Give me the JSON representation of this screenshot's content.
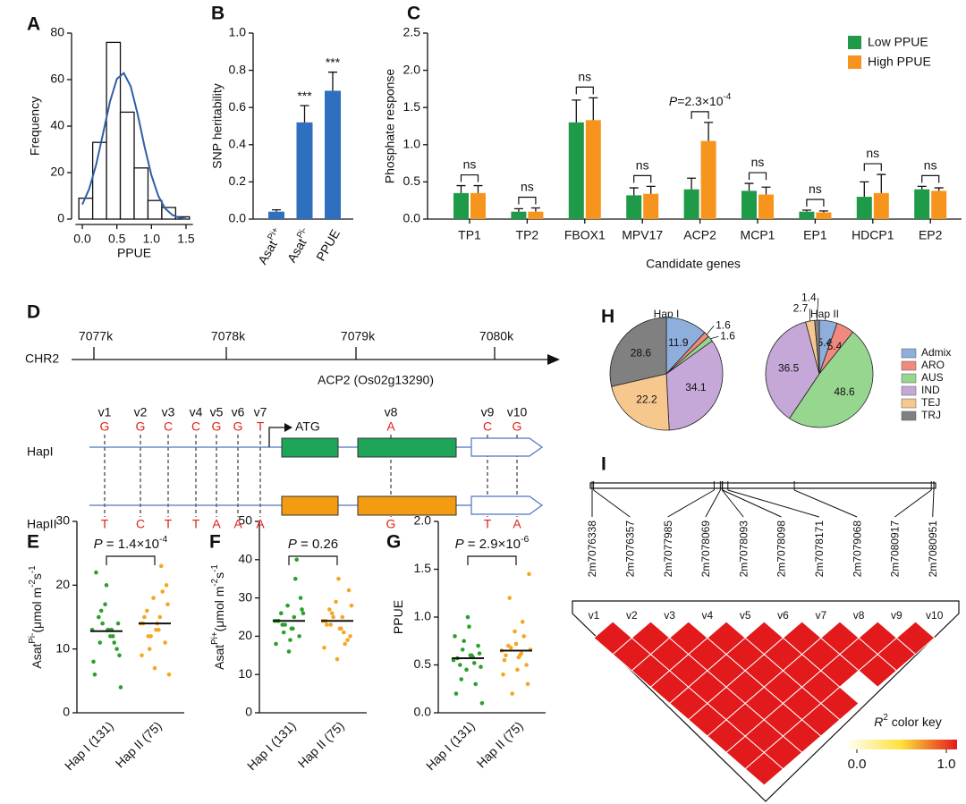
{
  "panel_labels": [
    "A",
    "B",
    "C",
    "D",
    "E",
    "F",
    "G",
    "H",
    "I"
  ],
  "chart_data": [
    {
      "type": "histogram",
      "x_label": "PPUE",
      "y_label": "Frequency",
      "bins": [
        -0.05,
        0.15,
        0.35,
        0.55,
        0.75,
        0.95,
        1.15,
        1.35,
        1.55
      ],
      "values": [
        9,
        33,
        76,
        46,
        22,
        8,
        5,
        1
      ],
      "color": "#ffffff",
      "edge_color": "#111111",
      "fit": {
        "color": "#2f5ea8",
        "x": [
          0,
          0.1,
          0.2,
          0.3,
          0.4,
          0.5,
          0.6,
          0.7,
          0.8,
          0.9,
          1.0,
          1.1,
          1.2,
          1.3,
          1.4,
          1.5
        ],
        "y": [
          6.3,
          13.0,
          23.4,
          36.8,
          50.5,
          60.3,
          62.8,
          57.1,
          45.2,
          31.2,
          18.8,
          9.9,
          4.5,
          1.8,
          0.6,
          0.2
        ]
      },
      "xlim": [
        -0.1,
        1.6
      ],
      "xticks": [
        {
          "value": 0,
          "label": "0.0"
        },
        {
          "value": 0.5,
          "label": "0.5"
        },
        {
          "value": 1,
          "label": "1.0"
        },
        {
          "value": 1.5,
          "label": "1.5"
        }
      ],
      "ylim": [
        0,
        80
      ],
      "yticks": [
        0,
        20,
        40,
        60,
        80
      ]
    },
    {
      "type": "bar",
      "y_label": "SNP heritability",
      "categories": [
        {
          "base": "Asat",
          "sup": "Pi+"
        },
        {
          "base": "Asat",
          "sup": "Pi-"
        },
        {
          "base": "PPUE"
        }
      ],
      "values": [
        0.04,
        0.52,
        0.69
      ],
      "errors": [
        0.01,
        0.09,
        0.1
      ],
      "annotations": [
        null,
        "***",
        "***"
      ],
      "color": "#2f6fbf",
      "ylim": [
        0,
        1
      ],
      "yticks": [
        {
          "value": 0,
          "label": "0.0"
        },
        {
          "value": 0.2,
          "label": "0.2"
        },
        {
          "value": 0.4,
          "label": "0.4"
        },
        {
          "value": 0.6,
          "label": "0.6"
        },
        {
          "value": 0.8,
          "label": "0.8"
        },
        {
          "value": 1,
          "label": "1.0"
        }
      ]
    },
    {
      "type": "bar",
      "y_label": "Phosphate response",
      "x_label": "Candidate genes",
      "categories": [
        "TP1",
        "TP2",
        "FBOX1",
        "MPV17",
        "ACP2",
        "MCP1",
        "EP1",
        "HDCP1",
        "EP2"
      ],
      "series": [
        {
          "name": "Low PPUE",
          "color": "#1f9a48",
          "values": [
            0.35,
            0.1,
            1.3,
            0.32,
            0.4,
            0.38,
            0.1,
            0.3,
            0.4
          ],
          "errors": [
            0.1,
            0.04,
            0.3,
            0.1,
            0.15,
            0.1,
            0.02,
            0.2,
            0.04
          ]
        },
        {
          "name": "High PPUE",
          "color": "#f7941d",
          "values": [
            0.35,
            0.1,
            1.33,
            0.34,
            1.05,
            0.33,
            0.09,
            0.35,
            0.38
          ],
          "errors": [
            0.1,
            0.05,
            0.3,
            0.1,
            0.25,
            0.1,
            0.02,
            0.25,
            0.04
          ]
        }
      ],
      "annotations": [
        [
          {
            "text": "ns"
          }
        ],
        [
          {
            "text": "ns"
          }
        ],
        [
          {
            "text": "ns"
          }
        ],
        [
          {
            "text": "ns"
          }
        ],
        [
          {
            "text": "P",
            "italic": true
          },
          {
            "text": "=2.3×10"
          },
          {
            "text": "-4",
            "sup": true
          }
        ],
        [
          {
            "text": "ns"
          }
        ],
        [
          {
            "text": "ns"
          }
        ],
        [
          {
            "text": "ns"
          }
        ],
        [
          {
            "text": "ns"
          }
        ]
      ],
      "legend": "top-right",
      "ylim": [
        0,
        2.5
      ],
      "yticks": [
        {
          "value": 0,
          "label": "0.0"
        },
        {
          "value": 0.5,
          "label": "0.5"
        },
        {
          "value": 1,
          "label": "1.0"
        },
        {
          "value": 1.5,
          "label": "1.5"
        },
        {
          "value": 2,
          "label": "2.0"
        },
        {
          "value": 2.5,
          "label": "2.5"
        }
      ]
    },
    {
      "type": "strip",
      "y_label_parts": [
        {
          "text": "Asat"
        },
        {
          "text": "Pi-",
          "sup": true
        },
        {
          "text": "(μmol m"
        },
        {
          "text": "-2",
          "sup": true
        },
        {
          "text": "s"
        },
        {
          "text": "-1",
          "sup": true
        }
      ],
      "categories": [
        "Hap I (131)",
        "Hap II (75)"
      ],
      "groups": [
        {
          "color": "#2ca02c",
          "median": 12.8,
          "values": [
            13,
            12,
            15,
            10,
            17,
            8,
            13,
            11,
            14,
            20,
            6,
            12,
            16,
            9,
            13,
            22,
            11,
            14,
            4,
            13
          ]
        },
        {
          "color": "#f5a623",
          "median": 14,
          "values": [
            14,
            13,
            16,
            11,
            18,
            9,
            15,
            12,
            20,
            7,
            14,
            23,
            10,
            17,
            13,
            15,
            19,
            12,
            6,
            14
          ]
        }
      ],
      "annotation": [
        {
          "text": "P",
          "italic": true
        },
        {
          "text": " = 1.4×10"
        },
        {
          "text": "-4",
          "sup": true
        }
      ],
      "ylim": [
        0,
        30
      ],
      "yticks": [
        0,
        10,
        20,
        30
      ]
    },
    {
      "type": "strip",
      "y_label_parts": [
        {
          "text": "Asat"
        },
        {
          "text": "Pi+",
          "sup": true
        },
        {
          "text": "(μmol m"
        },
        {
          "text": "-2",
          "sup": true
        },
        {
          "text": "s"
        },
        {
          "text": "-1",
          "sup": true
        }
      ],
      "categories": [
        "Hap I (131)",
        "Hap II (75)"
      ],
      "groups": [
        {
          "color": "#2ca02c",
          "median": 24,
          "values": [
            24,
            22,
            26,
            20,
            28,
            18,
            25,
            23,
            30,
            16,
            24,
            35,
            21,
            27,
            19,
            24,
            40,
            23,
            26,
            22
          ]
        },
        {
          "color": "#f5a623",
          "median": 24,
          "values": [
            24,
            22,
            27,
            19,
            29,
            17,
            25,
            23,
            32,
            14,
            24,
            21,
            26,
            20,
            35,
            23,
            18,
            25,
            28,
            22
          ]
        }
      ],
      "annotation": [
        {
          "text": "P",
          "italic": true
        },
        {
          "text": " = 0.26"
        }
      ],
      "ylim": [
        0,
        50
      ],
      "yticks": [
        0,
        10,
        20,
        30,
        40,
        50
      ]
    },
    {
      "type": "strip",
      "y_label_parts": [
        {
          "text": "PPUE"
        }
      ],
      "categories": [
        "Hap I (131)",
        "Hap II (75)"
      ],
      "groups": [
        {
          "color": "#2ca02c",
          "median": 0.57,
          "values": [
            0.55,
            0.6,
            0.5,
            0.7,
            0.45,
            0.8,
            0.58,
            0.35,
            0.62,
            1.0,
            0.2,
            0.52,
            0.66,
            0.48,
            0.9,
            0.57,
            0.3,
            0.75,
            0.1,
            0.6
          ]
        },
        {
          "color": "#f5a623",
          "median": 0.65,
          "values": [
            0.65,
            0.6,
            0.7,
            0.5,
            0.85,
            0.4,
            0.62,
            1.2,
            0.3,
            0.72,
            0.55,
            0.95,
            0.68,
            1.45,
            0.45,
            0.6,
            0.8,
            0.2,
            0.66,
            0.58
          ]
        }
      ],
      "annotation": [
        {
          "text": "P",
          "italic": true
        },
        {
          "text": " = 2.9×10"
        },
        {
          "text": "-6",
          "sup": true
        }
      ],
      "ylim": [
        0,
        2
      ],
      "yticks": [
        {
          "value": 0,
          "label": "0.0"
        },
        {
          "value": 0.5,
          "label": "0.5"
        },
        {
          "value": 1,
          "label": "1.0"
        },
        {
          "value": 1.5,
          "label": "1.5"
        },
        {
          "value": 2,
          "label": "2.0"
        }
      ]
    },
    {
      "type": "pie",
      "title": "Hap I",
      "categories": [
        "Admix",
        "ARO",
        "AUS",
        "IND",
        "TEJ",
        "TRJ"
      ],
      "values": [
        11.9,
        1.6,
        1.6,
        34.1,
        22.2,
        28.6
      ],
      "colors": [
        "#8eaedb",
        "#f08a7e",
        "#97d68f",
        "#c6a8d8",
        "#f7c88e",
        "#808080"
      ]
    },
    {
      "type": "pie",
      "title": "Hap II",
      "categories": [
        "Admix",
        "ARO",
        "AUS",
        "IND",
        "TEJ",
        "TRJ"
      ],
      "values": [
        5.4,
        5.4,
        48.6,
        36.5,
        2.7,
        1.4
      ],
      "colors": [
        "#8eaedb",
        "#f08a7e",
        "#97d68f",
        "#c6a8d8",
        "#f7c88e",
        "#808080"
      ],
      "legend": "right"
    }
  ],
  "gene_diagram": {
    "chromosome": "CHR2",
    "gene": "ACP2 (Os02g13290)",
    "coordinate_ticks": [
      "7077k",
      "7078k",
      "7079k",
      "7080k"
    ],
    "start_codon": "ATG",
    "variants": [
      "v1",
      "v2",
      "v3",
      "v4",
      "v5",
      "v6",
      "v7",
      "v8",
      "v9",
      "v10"
    ],
    "haplotypes": [
      {
        "name": "HapI",
        "alleles": [
          "G",
          "G",
          "C",
          "C",
          "G",
          "G",
          "T",
          "A",
          "C",
          "G"
        ],
        "exon_color": "#1fa55a"
      },
      {
        "name": "HapII",
        "alleles": [
          "T",
          "C",
          "T",
          "T",
          "A",
          "A",
          "A",
          "G",
          "T",
          "A"
        ],
        "exon_color": "#f39c12"
      }
    ]
  },
  "ld_plot": {
    "markers": [
      "2m7076338",
      "2m7076357",
      "2m7077985",
      "2m7078069",
      "2m7078093",
      "2m7078098",
      "2m7078171",
      "2m7079068",
      "2m7080917",
      "2m7080951"
    ],
    "variants": [
      "v1",
      "v2",
      "v3",
      "v4",
      "v5",
      "v6",
      "v7",
      "v8",
      "v9",
      "v10"
    ],
    "r2": [
      [
        1,
        1,
        1,
        1,
        1,
        1,
        1,
        1,
        1
      ],
      [
        1,
        1,
        1,
        1,
        1,
        1,
        1,
        1
      ],
      [
        1,
        1,
        1,
        1,
        1,
        1,
        1
      ],
      [
        1,
        1,
        1,
        1,
        1,
        1
      ],
      [
        1,
        1,
        1,
        1,
        1
      ],
      [
        1,
        1,
        1,
        0
      ],
      [
        1,
        1,
        1
      ],
      [
        1,
        1
      ],
      [
        1
      ]
    ],
    "color_key": {
      "title_parts": [
        {
          "text": "R",
          "italic": true
        },
        {
          "text": "2",
          "sup": true
        },
        {
          "text": " color key"
        }
      ],
      "ticks": [
        {
          "value": 0,
          "label": "0.0"
        },
        {
          "value": 1,
          "label": "1.0"
        }
      ]
    }
  }
}
